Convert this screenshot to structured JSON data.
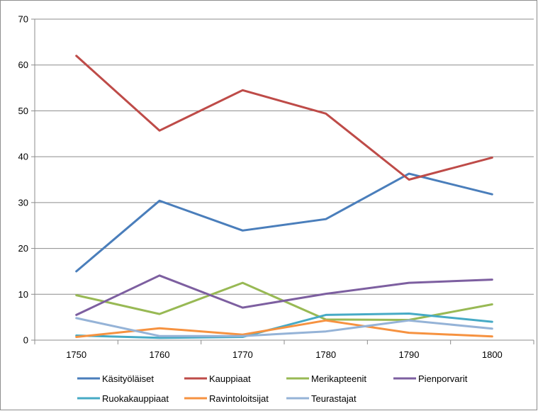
{
  "chart_data": {
    "type": "line",
    "title": "",
    "xlabel": "",
    "ylabel": "",
    "x": [
      "1750",
      "1760",
      "1770",
      "1780",
      "1790",
      "1800"
    ],
    "ylim": [
      0,
      70
    ],
    "yticks": [
      0,
      10,
      20,
      30,
      40,
      50,
      60,
      70
    ],
    "grid": "horizontal",
    "legend": "bottom",
    "series": [
      {
        "name": "Käsityöläiset",
        "color": "#4a7ebb",
        "values": [
          15.0,
          30.4,
          23.9,
          26.4,
          36.3,
          31.8
        ]
      },
      {
        "name": "Kauppiaat",
        "color": "#be4b48",
        "values": [
          62.0,
          45.7,
          54.5,
          49.4,
          35.0,
          39.8
        ]
      },
      {
        "name": "Merikapteenit",
        "color": "#98b954",
        "values": [
          9.8,
          5.7,
          12.5,
          4.5,
          4.4,
          7.8
        ]
      },
      {
        "name": "Pienporvarit",
        "color": "#7d5fa0",
        "values": [
          5.5,
          14.1,
          7.1,
          10.1,
          12.5,
          13.2
        ]
      },
      {
        "name": "Ruokakauppiaat",
        "color": "#46aac5",
        "values": [
          1.0,
          0.5,
          0.7,
          5.5,
          5.8,
          4.0
        ]
      },
      {
        "name": "Ravintoloitsijat",
        "color": "#f69240",
        "values": [
          0.7,
          2.6,
          1.2,
          4.3,
          1.6,
          0.8
        ]
      },
      {
        "name": "Teurastajat",
        "color": "#95b3d7",
        "values": [
          4.8,
          0.9,
          0.9,
          1.9,
          4.3,
          2.5
        ]
      }
    ]
  }
}
